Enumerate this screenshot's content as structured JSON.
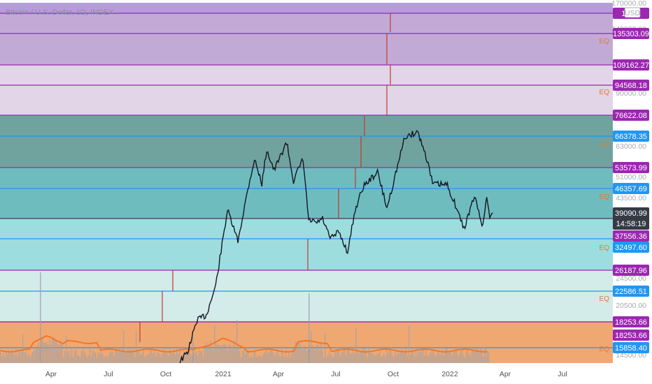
{
  "chart_data": {
    "type": "line",
    "title": "Bitcoin / U.S. Dollar, 1D, INDEX",
    "currency_badge": "USD",
    "countdown": "14:58:19",
    "last_price": 39090.99,
    "y_tick_labels": [
      "170000.00",
      "140000.00",
      "90000.00",
      "63000.00",
      "51000.00",
      "43500.00",
      "32500.00",
      "24500.00",
      "20500.00",
      "14500.00"
    ],
    "x_tick_labels": [
      "Apr",
      "Jul",
      "Oct",
      "2021",
      "Apr",
      "Jul",
      "Oct",
      "2022",
      "Apr",
      "Jul"
    ],
    "x_ticks": [
      "2020-04-01",
      "2020-07-01",
      "2020-10-01",
      "2021-01-01",
      "2021-04-01",
      "2021-07-01",
      "2021-10-01",
      "2022-01-01",
      "2022-04-01",
      "2022-07-01"
    ],
    "ylim": [
      14500,
      170000
    ],
    "price_levels": [
      {
        "value": "15xxxx.52",
        "label": "15     52",
        "color": "#9c27b0"
      },
      {
        "value": 135303.09,
        "label": "135303.09",
        "color": "#9c27b0"
      },
      {
        "value": 109162.27,
        "label": "109162.27",
        "color": "#9c27b0"
      },
      {
        "value": 94568.18,
        "label": "94568.18",
        "color": "#9c27b0"
      },
      {
        "value": 76622.08,
        "label": "76622.08",
        "color": "#9c27b0"
      },
      {
        "value": 66378.35,
        "label": "66378.35",
        "color": "#2196f3"
      },
      {
        "value": 53573.99,
        "label": "53573.99",
        "color": "#9c27b0"
      },
      {
        "value": 46357.69,
        "label": "46357.69",
        "color": "#2196f3"
      },
      {
        "value": 39090.99,
        "label": "39090.99",
        "color": "#363a45"
      },
      {
        "value": 37556.36,
        "label": "37556.36",
        "color": "#9c27b0"
      },
      {
        "value": 32497.6,
        "label": "32497.60",
        "color": "#2196f3"
      },
      {
        "value": 26187.96,
        "label": "26187.96",
        "color": "#9c27b0"
      },
      {
        "value": 22586.51,
        "label": "22586.51",
        "color": "#2196f3"
      },
      {
        "value": 18253.66,
        "label": "18253.66",
        "color": "#9c27b0"
      },
      {
        "value": 18253.66,
        "label": "18253.66",
        "color": "#9c27b0"
      },
      {
        "value": 15858.4,
        "label": "15858.40",
        "color": "#2196f3"
      }
    ],
    "zones": [
      {
        "top": 170000,
        "bottom": 152000,
        "color": "#b39ddb"
      },
      {
        "top": 152000,
        "bottom": 135303.09,
        "color": "#c3aad6"
      },
      {
        "top": 135303.09,
        "bottom": 109162.27,
        "color": "#c2aad6"
      },
      {
        "top": 109162.27,
        "bottom": 76622.08,
        "color": "#e1d5e7"
      },
      {
        "top": 76622.08,
        "bottom": 53573.99,
        "color": "#70a39d"
      },
      {
        "top": 53573.99,
        "bottom": 37556.36,
        "color": "#6fbcbf"
      },
      {
        "top": 37556.36,
        "bottom": 26187.96,
        "color": "#9ddde0"
      },
      {
        "top": 26187.96,
        "bottom": 18253.66,
        "color": "#d3ebe9"
      },
      {
        "top": 18253.66,
        "bottom": 14500,
        "color": "#f0a872"
      }
    ],
    "eq_marks": [
      "EQ",
      "EQ",
      "EQ",
      "EQ",
      "EQ",
      "EQ",
      "EQ"
    ],
    "series": [
      {
        "values": [
          [
            "2020-10-20",
            11900
          ],
          [
            "2020-11-05",
            15000
          ],
          [
            "2020-11-20",
            18500
          ],
          [
            "2020-12-05",
            19200
          ],
          [
            "2020-12-20",
            23500
          ],
          [
            "2021-01-08",
            40000
          ],
          [
            "2021-01-25",
            32000
          ],
          [
            "2021-02-10",
            46000
          ],
          [
            "2021-02-21",
            57000
          ],
          [
            "2021-03-05",
            48000
          ],
          [
            "2021-03-13",
            61000
          ],
          [
            "2021-03-25",
            52500
          ],
          [
            "2021-04-14",
            64000
          ],
          [
            "2021-04-25",
            49000
          ],
          [
            "2021-05-10",
            57000
          ],
          [
            "2021-05-19",
            37000
          ],
          [
            "2021-06-01",
            36500
          ],
          [
            "2021-06-10",
            37500
          ],
          [
            "2021-06-22",
            32500
          ],
          [
            "2021-07-06",
            34200
          ],
          [
            "2021-07-20",
            29800
          ],
          [
            "2021-08-01",
            40000
          ],
          [
            "2021-08-14",
            47000
          ],
          [
            "2021-09-06",
            52000
          ],
          [
            "2021-09-21",
            40500
          ],
          [
            "2021-10-05",
            51500
          ],
          [
            "2021-10-20",
            66000
          ],
          [
            "2021-11-10",
            68500
          ],
          [
            "2021-11-25",
            57000
          ],
          [
            "2021-12-04",
            48000
          ],
          [
            "2021-12-28",
            47500
          ],
          [
            "2022-01-10",
            41500
          ],
          [
            "2022-01-24",
            35000
          ],
          [
            "2022-02-10",
            44000
          ],
          [
            "2022-02-24",
            35500
          ],
          [
            "2022-03-02",
            44400
          ],
          [
            "2022-03-07",
            38000
          ],
          [
            "2022-03-12",
            39090.99
          ]
        ]
      }
    ]
  }
}
